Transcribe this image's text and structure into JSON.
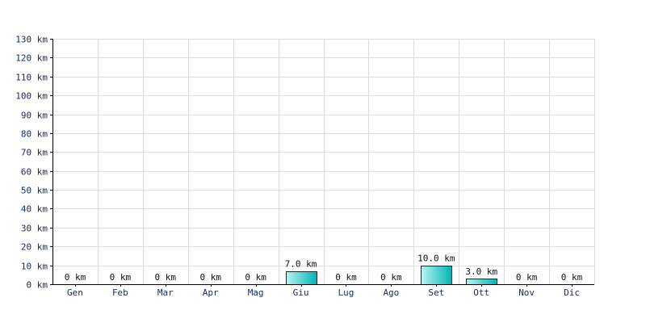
{
  "chart_data": {
    "type": "bar",
    "title": "",
    "xlabel": "",
    "ylabel": "",
    "unit": "km",
    "categories": [
      "Gen",
      "Feb",
      "Mar",
      "Apr",
      "Mag",
      "Giu",
      "Lug",
      "Ago",
      "Set",
      "Ott",
      "Nov",
      "Dic"
    ],
    "values": [
      0,
      0,
      0,
      0,
      0,
      7.0,
      0,
      0,
      10.0,
      3.0,
      0,
      0
    ],
    "data_labels": [
      "0 km",
      "0 km",
      "0 km",
      "0 km",
      "0 km",
      "7.0 km",
      "0 km",
      "0 km",
      "10.0 km",
      "3.0 km",
      "0 km",
      "0 km"
    ],
    "ylim": [
      0,
      130
    ],
    "yticks": [
      0,
      10,
      20,
      30,
      40,
      50,
      60,
      70,
      80,
      90,
      100,
      110,
      120,
      130
    ],
    "ytick_labels": [
      "0 km",
      "10 km",
      "20 km",
      "30 km",
      "40 km",
      "50 km",
      "60 km",
      "70 km",
      "80 km",
      "90 km",
      "100 km",
      "110 km",
      "120 km",
      "130 km"
    ],
    "grid": true,
    "legend": "none",
    "colors": {
      "bar_light": "#b8f4f4",
      "bar_dark": "#00b4b4",
      "axis_text": "#1a2a66",
      "grid": "#dddddd"
    }
  }
}
